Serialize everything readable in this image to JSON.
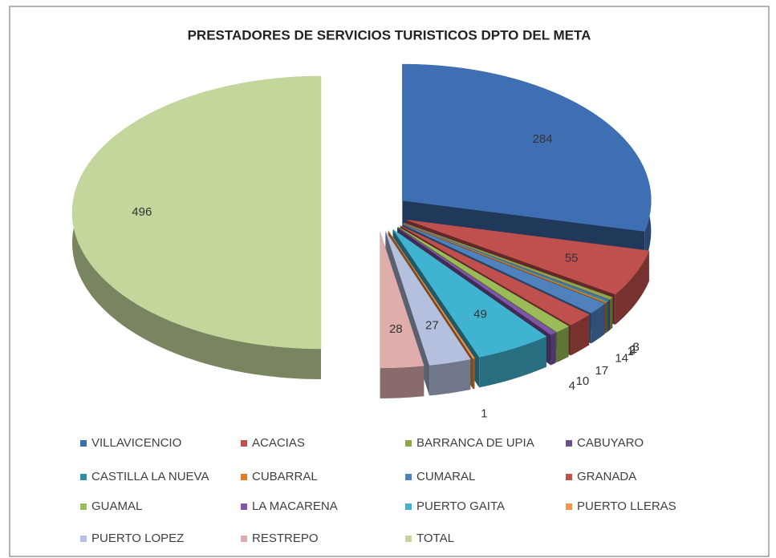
{
  "chart_data": {
    "type": "pie",
    "title": "PRESTADORES DE SERVICIOS TURISTICOS DPTO DEL META",
    "categories": [
      "VILLAVICENCIO",
      "ACACIAS",
      "BARRANCA DE UPIA",
      "CABUYARO",
      "CASTILLA LA NUEVA",
      "CUBARRAL",
      "CUMARAL",
      "GRANADA",
      "GUAMAL",
      "LA MACARENA",
      "PUERTO GAITA",
      "PUERTO LLERAS",
      "PUERTO LOPEZ",
      "RESTREPO",
      "TOTAL"
    ],
    "values": [
      284,
      55,
      3,
      1,
      2,
      1,
      14,
      17,
      10,
      4,
      49,
      1,
      27,
      28,
      496
    ],
    "colors": [
      "#3f6fb3",
      "#c0504d",
      "#8ca64a",
      "#6b4f8e",
      "#2f8ea0",
      "#e07b25",
      "#4f81bd",
      "#c0504d",
      "#9bbb59",
      "#7e57a8",
      "#3fb3cf",
      "#f79646",
      "#b4c0de",
      "#deadac",
      "#c3d69b"
    ],
    "legend": "bottom"
  }
}
